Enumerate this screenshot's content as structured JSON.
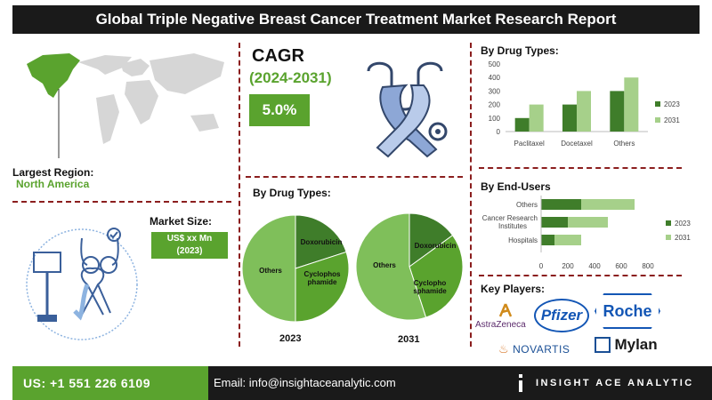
{
  "title": "Global Triple Negative Breast Cancer Treatment Market Research Report",
  "region": {
    "label": "Largest Region:",
    "value": "North America"
  },
  "cagr": {
    "title": "CAGR",
    "period": "(2024-2031)",
    "value": "5.0%"
  },
  "market_size": {
    "label": "Market Size:",
    "value_line1": "US$ xx Mn",
    "value_line2": "(2023)"
  },
  "colors": {
    "green": "#5aa32e",
    "dark_green": "#3f7d2a",
    "light_green": "#a6d08a",
    "divider": "#8b1e1e",
    "dark": "#1a1a1a"
  },
  "drug_types_bar": {
    "title": "By  Drug Types:"
  },
  "drug_types_pie": {
    "title": "By  Drug Types:"
  },
  "end_users": {
    "title": "By End-Users"
  },
  "key_players": {
    "title": "Key Players:",
    "names": [
      "AstraZeneca",
      "Pfizer",
      "Roche",
      "NOVARTIS",
      "Mylan"
    ]
  },
  "footer": {
    "phone": "US: +1 551 226 6109",
    "email": "Email: info@insightaceanalytic.com",
    "brand": "INSIGHT ACE ANALYTIC"
  },
  "chart_data": [
    {
      "type": "bar",
      "categories": [
        "Paclitaxel",
        "Docetaxel",
        "Others"
      ],
      "series": [
        {
          "name": "2023",
          "values": [
            100,
            200,
            300
          ]
        },
        {
          "name": "2031",
          "values": [
            200,
            300,
            400
          ]
        }
      ],
      "ylim": [
        0,
        500
      ],
      "yticks": [
        0,
        100,
        200,
        300,
        400,
        500
      ],
      "legend": "right"
    },
    {
      "type": "bar",
      "orientation": "horizontal",
      "categories": [
        "Others",
        "Cancer Research Institutes",
        "Hospitals"
      ],
      "series": [
        {
          "name": "2023",
          "values": [
            300,
            200,
            100
          ]
        },
        {
          "name": "2031",
          "values": [
            400,
            300,
            200
          ]
        }
      ],
      "stacked": true,
      "xlim": [
        0,
        800
      ],
      "xticks": [
        0,
        200,
        400,
        600,
        800
      ],
      "legend": "right"
    },
    {
      "type": "pie",
      "year": "2023",
      "slices": [
        {
          "label": "Doxorubicin",
          "value": 20
        },
        {
          "label": "Cyclophos phamide",
          "value": 30
        },
        {
          "label": "Others",
          "value": 50
        }
      ]
    },
    {
      "type": "pie",
      "year": "2031",
      "slices": [
        {
          "label": "Doxorubicin",
          "value": 15
        },
        {
          "label": "Cyclopho sphamide",
          "value": 30
        },
        {
          "label": "Others",
          "value": 55
        }
      ]
    }
  ]
}
